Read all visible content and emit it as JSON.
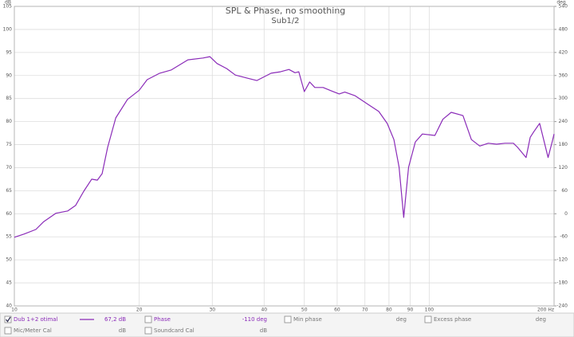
{
  "chart_data": {
    "type": "line",
    "title": "SPL & Phase, no smoothing",
    "subtitle": "Sub1/2",
    "y_label": "dB",
    "y2_label": "deg",
    "xscale": "log",
    "xlim": [
      10,
      200
    ],
    "xticks": [
      10,
      20,
      30,
      40,
      50,
      60,
      70,
      80,
      90,
      100,
      {
        "value": 200,
        "label": "200 Hz"
      }
    ],
    "ylim": [
      40,
      105
    ],
    "yticks": [
      40,
      45,
      50,
      55,
      60,
      65,
      70,
      75,
      80,
      85,
      90,
      95,
      100,
      105
    ],
    "y2lim": [
      -240,
      540
    ],
    "y2ticks": [
      -240,
      -180,
      -120,
      -60,
      0,
      60,
      120,
      180,
      240,
      300,
      360,
      420,
      480,
      540
    ],
    "grid": true,
    "x": [
      10,
      10.55,
      11.27,
      11.78,
      12.59,
      13.45,
      14.05,
      14.7,
      15.36,
      15.85,
      16.28,
      16.78,
      17.56,
      18.74,
      20.0,
      20.9,
      22.4,
      23.9,
      26.2,
      28.5,
      29.6,
      30.8,
      32.5,
      34.1,
      36.5,
      38.4,
      41.6,
      43.8,
      45.9,
      47.5,
      48.5,
      50.0,
      51.5,
      53.0,
      55.5,
      58.0,
      60.7,
      62.6,
      66.3,
      70.8,
      75.6,
      79.2,
      82.2,
      84.6,
      86.8,
      89.2,
      92.6,
      96.3,
      103.2,
      107.9,
      113.0,
      120.6,
      126.4,
      132.4,
      138.8,
      145.4,
      152.3,
      159.6,
      163.4,
      171.2,
      175.2,
      178.7,
      184.6,
      193.5,
      197.9,
      200
    ],
    "series": [
      {
        "name": "Dub 1+2 otimal",
        "color": "#8a2bb8",
        "readout": "67,2 dB",
        "checked": true,
        "values": [
          54.9,
          55.6,
          56.6,
          58.3,
          60.1,
          60.6,
          61.8,
          64.9,
          67.5,
          67.3,
          68.7,
          74.4,
          80.8,
          84.8,
          86.8,
          89.1,
          90.5,
          91.2,
          93.4,
          93.8,
          94.1,
          92.6,
          91.5,
          90.1,
          89.4,
          88.9,
          90.5,
          90.8,
          91.3,
          90.6,
          90.8,
          86.5,
          88.6,
          87.4,
          87.4,
          86.7,
          86.0,
          86.4,
          85.6,
          83.9,
          82.2,
          79.6,
          76.1,
          70.1,
          59.2,
          70.1,
          75.6,
          77.3,
          77.0,
          80.5,
          82.0,
          81.3,
          76.1,
          74.7,
          75.3,
          75.1,
          75.3,
          75.3,
          74.4,
          72.2,
          76.6,
          77.8,
          79.6,
          72.2,
          75.6,
          77.3
        ]
      }
    ],
    "panel": [
      {
        "label": "Phase",
        "value": "-110 deg",
        "checked": false
      },
      {
        "label": "Min phase",
        "value": "deg",
        "checked": false
      },
      {
        "label": "Excess phase",
        "value": "deg",
        "checked": false
      },
      {
        "label": "Mic/Meter Cal",
        "value": "dB",
        "checked": false
      },
      {
        "label": "Soundcard Cal",
        "value": "dB",
        "checked": false
      }
    ]
  }
}
